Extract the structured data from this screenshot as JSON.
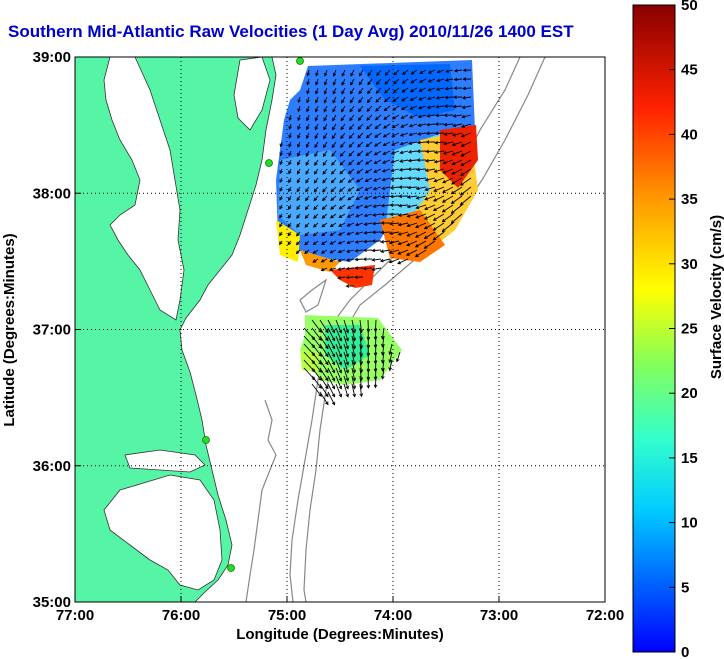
{
  "title": "Southern Mid-Atlantic Raw Velocities (1 Day Avg) 2010/11/26 1400 EST",
  "map": {
    "xlabel": "Longitude (Degrees:Minutes)",
    "ylabel": "Latitude (Degrees:Minutes)",
    "x_ticks": [
      {
        "lon": -77,
        "label": "77:00"
      },
      {
        "lon": -76,
        "label": "76:00"
      },
      {
        "lon": -75,
        "label": "75:00"
      },
      {
        "lon": -74,
        "label": "74:00"
      },
      {
        "lon": -73,
        "label": "73:00"
      },
      {
        "lon": -72,
        "label": "72:00"
      }
    ],
    "y_ticks": [
      {
        "lat": 39,
        "label": "39:00"
      },
      {
        "lat": 38,
        "label": "38:00"
      },
      {
        "lat": 37,
        "label": "37:00"
      },
      {
        "lat": 36,
        "label": "36:00"
      },
      {
        "lat": 35,
        "label": "35:00"
      }
    ],
    "xlim": [
      -77,
      -72
    ],
    "ylim": [
      35,
      39
    ],
    "grid": true,
    "land_color": "#55f5a5",
    "station_color": "#22dd22"
  },
  "colorbar": {
    "label": "Surface Velocity (cm/s)",
    "range": [
      0,
      50
    ],
    "ticks": [
      {
        "value": 0,
        "label": "0"
      },
      {
        "value": 5,
        "label": "5"
      },
      {
        "value": 10,
        "label": "10"
      },
      {
        "value": 15,
        "label": "15"
      },
      {
        "value": 20,
        "label": "20"
      },
      {
        "value": 25,
        "label": "25"
      },
      {
        "value": 30,
        "label": "30"
      },
      {
        "value": 35,
        "label": "35"
      },
      {
        "value": 40,
        "label": "40"
      },
      {
        "value": 45,
        "label": "45"
      },
      {
        "value": 50,
        "label": "50"
      }
    ],
    "colormap": "jet"
  }
}
